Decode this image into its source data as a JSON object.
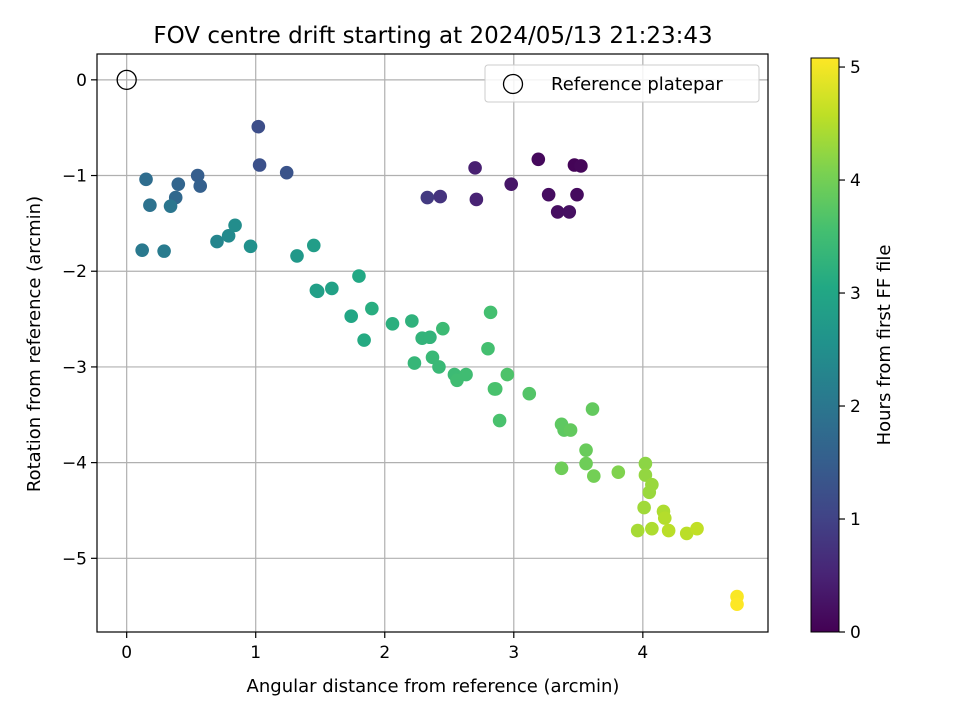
{
  "chart_data": {
    "type": "scatter",
    "title": "FOV centre drift starting at 2024/05/13 21:23:43",
    "xlabel": "Angular distance from reference (arcmin)",
    "ylabel": "Rotation from reference (arcmin)",
    "xlim": [
      -0.23,
      4.97
    ],
    "ylim": [
      -5.77,
      0.27
    ],
    "xticks": [
      0,
      1,
      2,
      3,
      4
    ],
    "yticks": [
      0,
      -1,
      -2,
      -3,
      -4,
      -5
    ],
    "xtick_labels": [
      "0",
      "1",
      "2",
      "3",
      "4"
    ],
    "ytick_labels": [
      "0",
      "−1",
      "−2",
      "−3",
      "−4",
      "−5"
    ],
    "grid": true,
    "legend": {
      "position": "top-right",
      "entries": [
        "Reference platepar"
      ]
    },
    "reference_point": {
      "x": 0,
      "y": 0
    },
    "colorbar": {
      "label": "Hours from first FF file",
      "colormap": "viridis",
      "min": 0,
      "max": 5.08,
      "ticks": [
        0,
        1,
        2,
        3,
        4,
        5
      ],
      "tick_labels": [
        "0",
        "1",
        "2",
        "3",
        "4",
        "5"
      ]
    },
    "points": [
      {
        "x": 3.47,
        "y": -0.89,
        "c": 0.05
      },
      {
        "x": 3.52,
        "y": -0.9,
        "c": 0.08
      },
      {
        "x": 3.19,
        "y": -0.83,
        "c": 0.12
      },
      {
        "x": 3.49,
        "y": -1.2,
        "c": 0.15
      },
      {
        "x": 3.27,
        "y": -1.2,
        "c": 0.18
      },
      {
        "x": 3.34,
        "y": -1.38,
        "c": 0.2
      },
      {
        "x": 3.43,
        "y": -1.38,
        "c": 0.22
      },
      {
        "x": 2.98,
        "y": -1.09,
        "c": 0.3
      },
      {
        "x": 2.7,
        "y": -0.92,
        "c": 0.45
      },
      {
        "x": 2.71,
        "y": -1.25,
        "c": 0.5
      },
      {
        "x": 2.43,
        "y": -1.22,
        "c": 0.75
      },
      {
        "x": 2.33,
        "y": -1.23,
        "c": 0.85
      },
      {
        "x": 1.02,
        "y": -0.49,
        "c": 1.2
      },
      {
        "x": 1.03,
        "y": -0.89,
        "c": 1.25
      },
      {
        "x": 1.24,
        "y": -0.97,
        "c": 1.3
      },
      {
        "x": 0.55,
        "y": -1.0,
        "c": 1.5
      },
      {
        "x": 0.57,
        "y": -1.11,
        "c": 1.55
      },
      {
        "x": 0.4,
        "y": -1.09,
        "c": 1.65
      },
      {
        "x": 0.38,
        "y": -1.23,
        "c": 1.7
      },
      {
        "x": 0.15,
        "y": -1.04,
        "c": 1.8
      },
      {
        "x": 0.18,
        "y": -1.31,
        "c": 1.9
      },
      {
        "x": 0.34,
        "y": -1.32,
        "c": 2.0
      },
      {
        "x": 0.12,
        "y": -1.78,
        "c": 2.05
      },
      {
        "x": 0.29,
        "y": -1.79,
        "c": 2.1
      },
      {
        "x": 0.7,
        "y": -1.69,
        "c": 2.3
      },
      {
        "x": 0.79,
        "y": -1.63,
        "c": 2.4
      },
      {
        "x": 0.84,
        "y": -1.52,
        "c": 2.45
      },
      {
        "x": 0.96,
        "y": -1.74,
        "c": 2.55
      },
      {
        "x": 1.32,
        "y": -1.84,
        "c": 2.7
      },
      {
        "x": 1.45,
        "y": -1.73,
        "c": 2.8
      },
      {
        "x": 1.47,
        "y": -2.2,
        "c": 2.85
      },
      {
        "x": 1.48,
        "y": -2.21,
        "c": 2.85
      },
      {
        "x": 1.59,
        "y": -2.18,
        "c": 2.9
      },
      {
        "x": 1.74,
        "y": -2.47,
        "c": 3.0
      },
      {
        "x": 1.8,
        "y": -2.05,
        "c": 3.05
      },
      {
        "x": 1.84,
        "y": -2.72,
        "c": 3.1
      },
      {
        "x": 1.9,
        "y": -2.39,
        "c": 3.15
      },
      {
        "x": 2.06,
        "y": -2.55,
        "c": 3.2
      },
      {
        "x": 2.21,
        "y": -2.52,
        "c": 3.25
      },
      {
        "x": 2.29,
        "y": -2.7,
        "c": 3.3
      },
      {
        "x": 2.35,
        "y": -2.69,
        "c": 3.3
      },
      {
        "x": 2.23,
        "y": -2.96,
        "c": 3.35
      },
      {
        "x": 2.37,
        "y": -2.9,
        "c": 3.4
      },
      {
        "x": 2.42,
        "y": -3.0,
        "c": 3.4
      },
      {
        "x": 2.45,
        "y": -2.6,
        "c": 3.45
      },
      {
        "x": 2.54,
        "y": -3.08,
        "c": 3.45
      },
      {
        "x": 2.56,
        "y": -3.14,
        "c": 3.5
      },
      {
        "x": 2.63,
        "y": -3.08,
        "c": 3.5
      },
      {
        "x": 2.8,
        "y": -2.81,
        "c": 3.55
      },
      {
        "x": 2.82,
        "y": -2.43,
        "c": 3.55
      },
      {
        "x": 2.85,
        "y": -3.23,
        "c": 3.6
      },
      {
        "x": 2.86,
        "y": -3.23,
        "c": 3.6
      },
      {
        "x": 2.89,
        "y": -3.56,
        "c": 3.6
      },
      {
        "x": 2.95,
        "y": -3.08,
        "c": 3.65
      },
      {
        "x": 3.12,
        "y": -3.28,
        "c": 3.7
      },
      {
        "x": 3.37,
        "y": -3.6,
        "c": 3.8
      },
      {
        "x": 3.39,
        "y": -3.66,
        "c": 3.8
      },
      {
        "x": 3.44,
        "y": -3.66,
        "c": 3.85
      },
      {
        "x": 3.61,
        "y": -3.44,
        "c": 3.85
      },
      {
        "x": 3.56,
        "y": -3.87,
        "c": 3.9
      },
      {
        "x": 3.37,
        "y": -4.06,
        "c": 3.95
      },
      {
        "x": 3.56,
        "y": -4.01,
        "c": 3.95
      },
      {
        "x": 3.62,
        "y": -4.14,
        "c": 4.0
      },
      {
        "x": 3.81,
        "y": -4.1,
        "c": 4.1
      },
      {
        "x": 4.02,
        "y": -4.01,
        "c": 4.2
      },
      {
        "x": 4.02,
        "y": -4.13,
        "c": 4.25
      },
      {
        "x": 4.07,
        "y": -4.23,
        "c": 4.3
      },
      {
        "x": 4.05,
        "y": -4.31,
        "c": 4.3
      },
      {
        "x": 4.01,
        "y": -4.47,
        "c": 4.35
      },
      {
        "x": 3.96,
        "y": -4.71,
        "c": 4.4
      },
      {
        "x": 4.07,
        "y": -4.69,
        "c": 4.45
      },
      {
        "x": 4.16,
        "y": -4.51,
        "c": 4.45
      },
      {
        "x": 4.17,
        "y": -4.58,
        "c": 4.5
      },
      {
        "x": 4.2,
        "y": -4.71,
        "c": 4.55
      },
      {
        "x": 4.34,
        "y": -4.74,
        "c": 4.55
      },
      {
        "x": 4.42,
        "y": -4.69,
        "c": 4.6
      },
      {
        "x": 4.73,
        "y": -5.4,
        "c": 5.05
      },
      {
        "x": 4.73,
        "y": -5.48,
        "c": 5.08
      }
    ]
  }
}
